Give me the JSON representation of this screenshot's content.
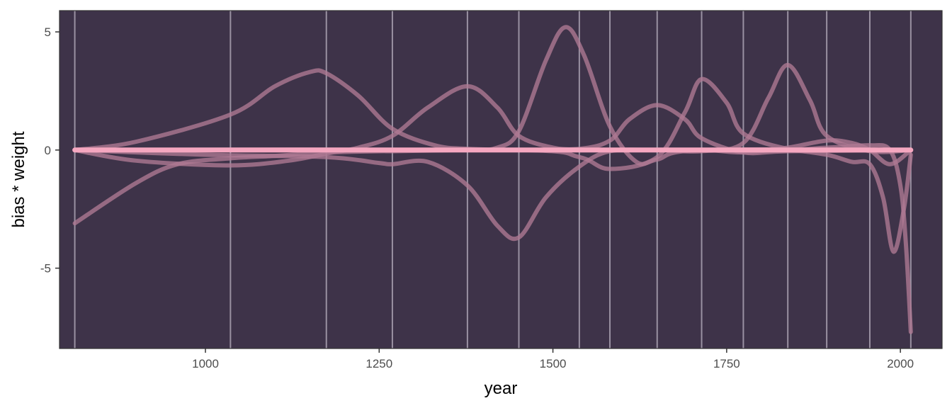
{
  "chart_data": {
    "type": "line",
    "title": "",
    "xlabel": "year",
    "ylabel": "bias * weight",
    "xlim": [
      790,
      2060
    ],
    "ylim": [
      -8.4,
      5.9
    ],
    "x_ticks": [
      1000,
      1250,
      1500,
      1750,
      2000
    ],
    "x_tick_labels": [
      "1000",
      "1250",
      "1500",
      "1750",
      "2000"
    ],
    "y_ticks": [
      5,
      0,
      -5
    ],
    "y_tick_labels": [
      "5",
      "0",
      "-5"
    ],
    "knots": [
      812,
      1036,
      1174,
      1269,
      1377,
      1451,
      1538,
      1582,
      1650,
      1714,
      1774,
      1838,
      1894,
      1956,
      2015
    ],
    "colors": {
      "panel": "#3e3349",
      "gridline": "#b9b1c0",
      "basis_line": "#b07a93",
      "mean_line": "#f5a7c0",
      "axis_tick": "#333333"
    },
    "series": [
      {
        "x": [
          812,
          900,
          960,
          1036,
          1100,
          1150,
          1174,
          1250,
          1269,
          1377,
          1451,
          1538,
          1582,
          1650,
          1714,
          1774,
          1838,
          1894,
          1956,
          2015
        ],
        "y": [
          -3.1,
          -1.4,
          -0.6,
          -0.35,
          -0.25,
          -0.15,
          -0.1,
          -0.05,
          -0.05,
          0,
          0,
          0,
          0,
          0,
          0,
          0,
          0,
          0,
          0,
          0
        ]
      },
      {
        "x": [
          812,
          900,
          1036,
          1100,
          1150,
          1174,
          1220,
          1269,
          1330,
          1377,
          1451,
          1538,
          2015
        ],
        "y": [
          0,
          0.35,
          1.5,
          2.7,
          3.3,
          3.25,
          2.3,
          0.9,
          0.2,
          0.05,
          0,
          0,
          0
        ]
      },
      {
        "x": [
          812,
          900,
          1036,
          1120,
          1174,
          1220,
          1269,
          1320,
          1377,
          1420,
          1451,
          1500,
          1538,
          1582,
          1650,
          2015
        ],
        "y": [
          0,
          -0.45,
          -0.65,
          -0.45,
          -0.15,
          0.1,
          0.6,
          1.8,
          2.7,
          1.8,
          0.6,
          0.1,
          0.02,
          0,
          0,
          0
        ]
      },
      {
        "x": [
          812,
          1000,
          1174,
          1250,
          1269,
          1320,
          1377,
          1420,
          1451,
          1490,
          1538,
          1582,
          1650,
          1714,
          2015
        ],
        "y": [
          0,
          -0.2,
          -0.3,
          -0.55,
          -0.6,
          -0.5,
          -1.5,
          -3.2,
          -3.7,
          -2.0,
          -0.7,
          -0.05,
          0,
          0,
          0
        ]
      },
      {
        "x": [
          812,
          1269,
          1377,
          1420,
          1451,
          1490,
          1518,
          1545,
          1582,
          1620,
          1650,
          1714,
          2015
        ],
        "y": [
          0,
          0,
          0,
          0.1,
          0.8,
          3.8,
          5.2,
          4.0,
          1.0,
          -0.5,
          -0.4,
          0,
          0
        ]
      },
      {
        "x": [
          812,
          1377,
          1451,
          1538,
          1582,
          1610,
          1650,
          1690,
          1714,
          1774,
          1838,
          2015
        ],
        "y": [
          0,
          0,
          0,
          0.05,
          0.4,
          1.3,
          1.9,
          1.3,
          0.5,
          -0.1,
          -0.05,
          0
        ]
      },
      {
        "x": [
          812,
          1451,
          1538,
          1582,
          1650,
          1690,
          1714,
          1750,
          1774,
          1838,
          1894,
          2015
        ],
        "y": [
          0,
          0,
          -0.3,
          -0.8,
          -0.3,
          1.6,
          3.0,
          2.0,
          0.7,
          0.05,
          0,
          0
        ]
      },
      {
        "x": [
          812,
          1538,
          1650,
          1714,
          1774,
          1810,
          1838,
          1870,
          1894,
          1956,
          2015
        ],
        "y": [
          0,
          0,
          0,
          -0.05,
          0.3,
          2.2,
          3.6,
          2.1,
          0.6,
          -0.05,
          0
        ]
      },
      {
        "x": [
          812,
          1582,
          1714,
          1774,
          1838,
          1894,
          1930,
          1956,
          1985,
          2015
        ],
        "y": [
          0,
          0,
          0,
          -0.1,
          0.1,
          0.4,
          0.3,
          0.0,
          -0.6,
          0
        ]
      },
      {
        "x": [
          812,
          1650,
          1774,
          1838,
          1894,
          1930,
          1956,
          1975,
          1990,
          2005,
          2015
        ],
        "y": [
          0,
          0,
          0,
          0,
          -0.2,
          -0.5,
          -0.6,
          -2.0,
          -4.3,
          -2.5,
          -0.2
        ]
      },
      {
        "x": [
          812,
          1774,
          1894,
          1956,
          1985,
          2000,
          2008,
          2015
        ],
        "y": [
          0,
          0,
          0.1,
          0.2,
          0.0,
          -1.5,
          -4.0,
          -7.7
        ]
      },
      {
        "x": [
          812,
          2015
        ],
        "y": [
          0,
          0
        ],
        "highlight": true
      }
    ]
  }
}
